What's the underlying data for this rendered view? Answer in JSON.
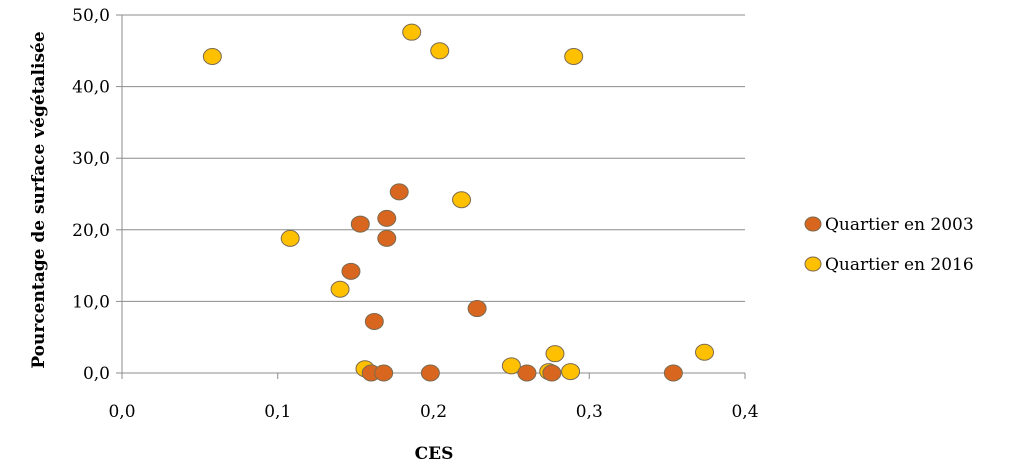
{
  "chart_data": {
    "type": "scatter",
    "title": "",
    "xlabel": "CES",
    "ylabel": "Pourcentage de surface végétalisée",
    "xlim": [
      0,
      0.4
    ],
    "ylim": [
      0,
      50
    ],
    "x_ticks": [
      "0,0",
      "0,1",
      "0,2",
      "0,3",
      "0,4"
    ],
    "y_ticks": [
      "0,0",
      "10,0",
      "20,0",
      "30,0",
      "40,0",
      "50,0"
    ],
    "grid": "horizontal",
    "legend_position": "right",
    "series": [
      {
        "name": "Quartier en 2003",
        "color": "#d9661f",
        "points": [
          [
            0.16,
            0.0
          ],
          [
            0.168,
            0.0
          ],
          [
            0.198,
            0.0
          ],
          [
            0.26,
            0.0
          ],
          [
            0.276,
            0.0
          ],
          [
            0.354,
            0.0
          ],
          [
            0.162,
            7.2
          ],
          [
            0.228,
            9.0
          ],
          [
            0.147,
            14.2
          ],
          [
            0.17,
            18.8
          ],
          [
            0.153,
            20.8
          ],
          [
            0.17,
            21.6
          ],
          [
            0.178,
            25.3
          ]
        ]
      },
      {
        "name": "Quartier en 2016",
        "color": "#ffc000",
        "points": [
          [
            0.058,
            44.2
          ],
          [
            0.186,
            47.6
          ],
          [
            0.204,
            45.0
          ],
          [
            0.29,
            44.2
          ],
          [
            0.218,
            24.2
          ],
          [
            0.108,
            18.8
          ],
          [
            0.14,
            11.7
          ],
          [
            0.156,
            0.6
          ],
          [
            0.25,
            1.0
          ],
          [
            0.274,
            0.2
          ],
          [
            0.278,
            2.7
          ],
          [
            0.288,
            0.2
          ],
          [
            0.374,
            2.9
          ]
        ]
      }
    ]
  }
}
